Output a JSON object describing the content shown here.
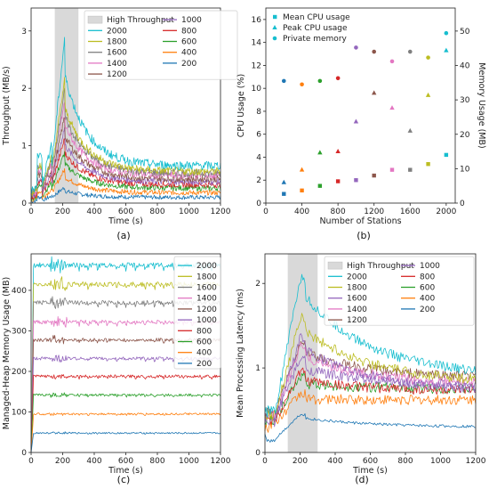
{
  "chart_data": [
    {
      "id": "a",
      "caption": "(a)",
      "type": "line",
      "xlabel": "Time (s)",
      "ylabel": "Throughput (MB/s)",
      "xlim": [
        0,
        1200
      ],
      "ylim": [
        0,
        3.4
      ],
      "xticks": [
        0,
        200,
        400,
        600,
        800,
        1000,
        1200
      ],
      "yticks": [
        0,
        1,
        2,
        3
      ],
      "legend_position": "top-right",
      "legend_columns": 2,
      "shade": {
        "label": "High Throughput",
        "x": [
          150,
          300
        ],
        "color": "#d9d9d9"
      },
      "series": [
        {
          "name": "2000",
          "color": "#17becf",
          "base": 0.65,
          "peak": 2.95
        },
        {
          "name": "1800",
          "color": "#bcbd22",
          "base": 0.55,
          "peak": 2.2
        },
        {
          "name": "1600",
          "color": "#7f7f7f",
          "base": 0.52,
          "peak": 2.0
        },
        {
          "name": "1400",
          "color": "#e377c2",
          "base": 0.48,
          "peak": 1.8
        },
        {
          "name": "1200",
          "color": "#8c564b",
          "base": 0.42,
          "peak": 1.55
        },
        {
          "name": "1000",
          "color": "#9467bd",
          "base": 0.37,
          "peak": 1.35
        },
        {
          "name": "800",
          "color": "#d62728",
          "base": 0.32,
          "peak": 1.15
        },
        {
          "name": "600",
          "color": "#2ca02c",
          "base": 0.26,
          "peak": 0.9
        },
        {
          "name": "400",
          "color": "#ff7f0e",
          "base": 0.18,
          "peak": 0.6
        },
        {
          "name": "200",
          "color": "#1f77b4",
          "base": 0.1,
          "peak": 0.28
        }
      ]
    },
    {
      "id": "b",
      "caption": "(b)",
      "type": "scatter",
      "xlabel": "Number of Stations",
      "ylabel": "CPU Usage (%)",
      "y2label": "Memory Usage (MB)",
      "xlim": [
        0,
        2100
      ],
      "ylim": [
        0,
        17
      ],
      "y2lim": [
        0,
        56.7
      ],
      "xticks": [
        0,
        400,
        800,
        1200,
        1600,
        2000
      ],
      "yticks": [
        0,
        2,
        4,
        6,
        8,
        10,
        12,
        14,
        16
      ],
      "y2ticks": [
        0,
        10,
        20,
        30,
        40,
        50
      ],
      "legend_position": "top-left",
      "x": [
        200,
        400,
        600,
        800,
        1000,
        1200,
        1400,
        1600,
        1800,
        2000
      ],
      "colors": [
        "#1f77b4",
        "#ff7f0e",
        "#2ca02c",
        "#d62728",
        "#9467bd",
        "#8c564b",
        "#e377c2",
        "#7f7f7f",
        "#bcbd22",
        "#17becf"
      ],
      "series": [
        {
          "name": "Mean CPU usage",
          "marker": "square",
          "axis": "left",
          "values": [
            0.8,
            1.1,
            1.5,
            1.9,
            2.0,
            2.4,
            2.9,
            2.9,
            3.4,
            4.2
          ]
        },
        {
          "name": "Peak CPU usage",
          "marker": "triangle",
          "axis": "left",
          "values": [
            1.8,
            2.9,
            4.4,
            4.5,
            7.1,
            9.6,
            8.3,
            6.3,
            9.4,
            13.3
          ]
        },
        {
          "name": "Private memory",
          "marker": "circle",
          "axis": "right",
          "values": [
            35.5,
            34.5,
            35.5,
            36.3,
            45.2,
            44.0,
            41.2,
            44.0,
            42.3,
            49.4
          ]
        }
      ]
    },
    {
      "id": "c",
      "caption": "(c)",
      "type": "line",
      "xlabel": "Time (s)",
      "ylabel": "Managed-Heap Memory Usage (MB)",
      "xlim": [
        0,
        1200
      ],
      "ylim": [
        0,
        490
      ],
      "xticks": [
        0,
        200,
        400,
        600,
        800,
        1000,
        1200
      ],
      "yticks": [
        0,
        100,
        200,
        300,
        400
      ],
      "legend_position": "right",
      "series": [
        {
          "name": "2000",
          "color": "#17becf",
          "level": 462
        },
        {
          "name": "1800",
          "color": "#bcbd22",
          "level": 415
        },
        {
          "name": "1600",
          "color": "#7f7f7f",
          "level": 370
        },
        {
          "name": "1400",
          "color": "#e377c2",
          "level": 322
        },
        {
          "name": "1200",
          "color": "#8c564b",
          "level": 278
        },
        {
          "name": "1000",
          "color": "#9467bd",
          "level": 232
        },
        {
          "name": "800",
          "color": "#d62728",
          "level": 188
        },
        {
          "name": "600",
          "color": "#2ca02c",
          "level": 142
        },
        {
          "name": "400",
          "color": "#ff7f0e",
          "level": 95
        },
        {
          "name": "200",
          "color": "#1f77b4",
          "level": 48
        }
      ]
    },
    {
      "id": "d",
      "caption": "(d)",
      "type": "line",
      "xlabel": "Time (s)",
      "ylabel": "Mean Processing Latency (ms)",
      "xlim": [
        0,
        1200
      ],
      "ylim": [
        0,
        2.35
      ],
      "xticks": [
        0,
        200,
        400,
        600,
        800,
        1000,
        1200
      ],
      "yticks": [
        0,
        1,
        2
      ],
      "legend_position": "top-right",
      "legend_columns": 2,
      "shade": {
        "label": "High Throughput",
        "x": [
          130,
          300
        ],
        "color": "#d9d9d9"
      },
      "series": [
        {
          "name": "2000",
          "color": "#17becf",
          "base": 0.9,
          "peak": 2.05
        },
        {
          "name": "1800",
          "color": "#bcbd22",
          "base": 0.82,
          "peak": 1.6
        },
        {
          "name": "1600",
          "color": "#9467bd",
          "base": 0.72,
          "peak": 1.35
        },
        {
          "name": "1400",
          "color": "#e377c2",
          "base": 0.8,
          "peak": 1.25
        },
        {
          "name": "1200",
          "color": "#8c564b",
          "base": 0.88,
          "peak": 1.3
        },
        {
          "name": "1000",
          "color": "#9467bd",
          "base": 0.78,
          "peak": 1.1
        },
        {
          "name": "800",
          "color": "#d62728",
          "base": 0.72,
          "peak": 0.95
        },
        {
          "name": "600",
          "color": "#2ca02c",
          "base": 0.75,
          "peak": 0.9
        },
        {
          "name": "400",
          "color": "#ff7f0e",
          "base": 0.62,
          "peak": 0.7
        },
        {
          "name": "200",
          "color": "#1f77b4",
          "base": 0.3,
          "peak": 0.45
        }
      ]
    }
  ]
}
